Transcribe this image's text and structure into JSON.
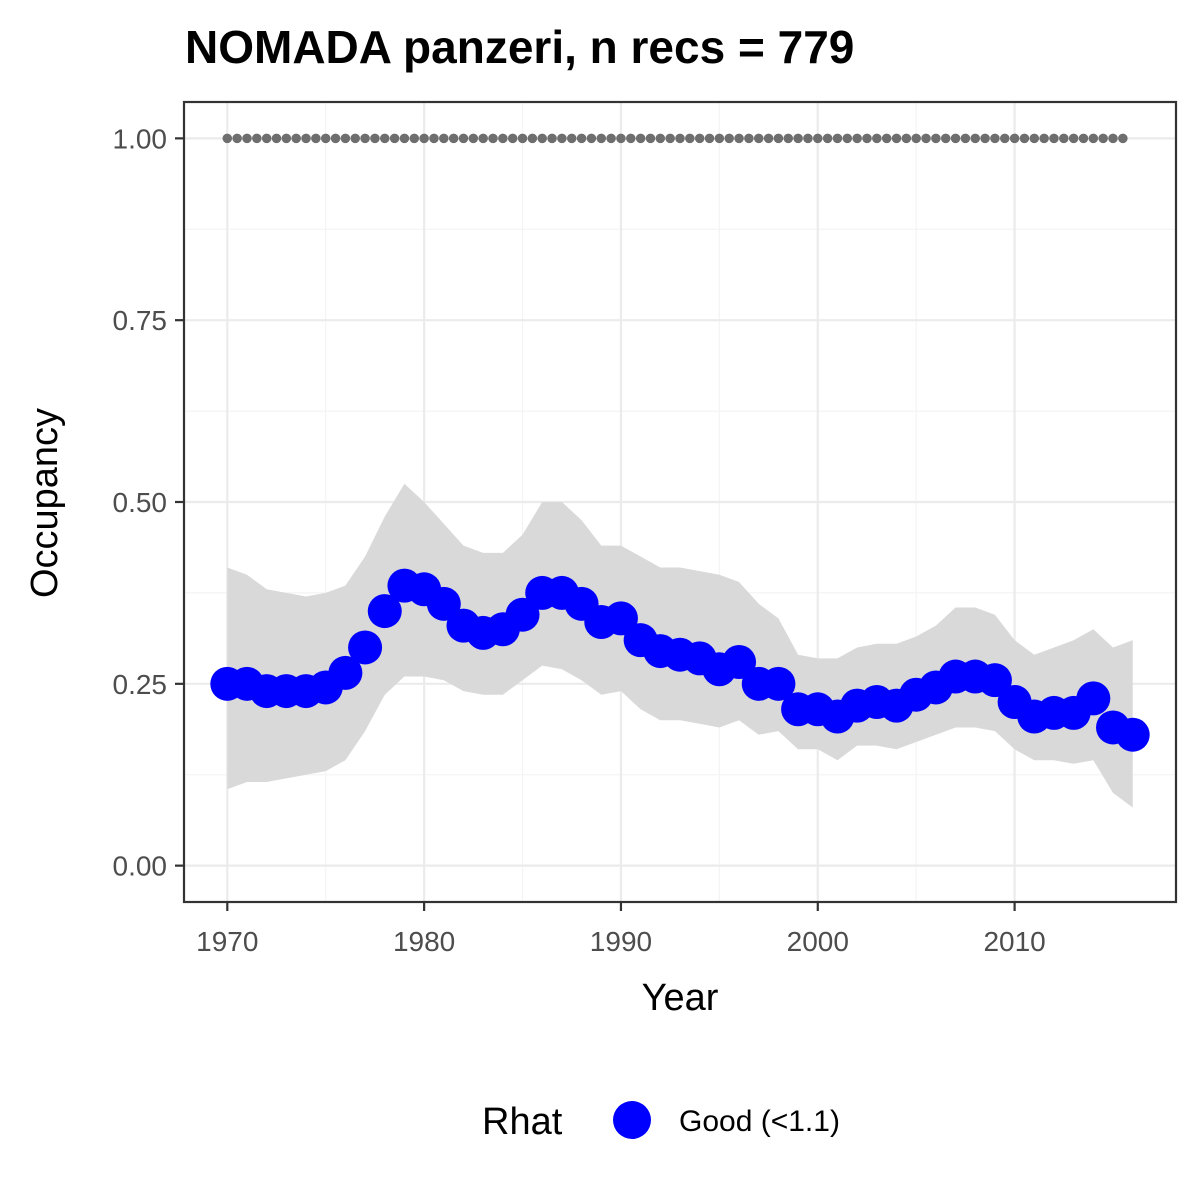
{
  "chart_data": {
    "type": "line",
    "title": "NOMADA panzeri, n recs = 779",
    "xlabel": "Year",
    "ylabel": "Occupancy",
    "xlim": [
      1967.8,
      2018.2
    ],
    "ylim": [
      -0.05,
      1.05
    ],
    "x_ticks": [
      1970,
      1980,
      1990,
      2000,
      2010
    ],
    "x_tick_labels": [
      "1970",
      "1980",
      "1990",
      "2000",
      "2010"
    ],
    "y_ticks": [
      0.0,
      0.25,
      0.5,
      0.75,
      1.0
    ],
    "y_tick_labels": [
      "0.00",
      "0.25",
      "0.50",
      "0.75",
      "1.00"
    ],
    "grid": true,
    "legend": {
      "title": "Rhat",
      "position": "bottom",
      "entries": [
        {
          "label": "Good (<1.1)",
          "color": "#0000ff"
        }
      ]
    },
    "colors": {
      "points": "#0000ff",
      "ribbon": "#d9d9d9",
      "reference_dots": "#6e6e6e",
      "panel_border": "#333333",
      "grid_major": "#ebebeb",
      "grid_minor": "#f4f4f4"
    },
    "series": [
      {
        "name": "Good (<1.1)",
        "x": [
          1970,
          1971,
          1972,
          1973,
          1974,
          1975,
          1976,
          1977,
          1978,
          1979,
          1980,
          1981,
          1982,
          1983,
          1984,
          1985,
          1986,
          1987,
          1988,
          1989,
          1990,
          1991,
          1992,
          1993,
          1994,
          1995,
          1996,
          1997,
          1998,
          1999,
          2000,
          2001,
          2002,
          2003,
          2004,
          2005,
          2006,
          2007,
          2008,
          2009,
          2010,
          2011,
          2012,
          2013,
          2014,
          2015,
          2016
        ],
        "y": [
          0.25,
          0.25,
          0.24,
          0.24,
          0.24,
          0.245,
          0.265,
          0.3,
          0.35,
          0.385,
          0.38,
          0.36,
          0.33,
          0.32,
          0.325,
          0.345,
          0.375,
          0.375,
          0.36,
          0.335,
          0.34,
          0.31,
          0.295,
          0.29,
          0.285,
          0.27,
          0.28,
          0.25,
          0.25,
          0.215,
          0.215,
          0.205,
          0.22,
          0.225,
          0.22,
          0.235,
          0.245,
          0.26,
          0.26,
          0.255,
          0.225,
          0.205,
          0.21,
          0.21,
          0.23,
          0.19,
          0.18
        ],
        "lower": [
          0.105,
          0.115,
          0.115,
          0.12,
          0.125,
          0.13,
          0.145,
          0.185,
          0.235,
          0.26,
          0.26,
          0.255,
          0.24,
          0.235,
          0.235,
          0.255,
          0.275,
          0.27,
          0.255,
          0.235,
          0.24,
          0.215,
          0.2,
          0.2,
          0.195,
          0.19,
          0.2,
          0.18,
          0.185,
          0.16,
          0.16,
          0.145,
          0.165,
          0.165,
          0.16,
          0.17,
          0.18,
          0.19,
          0.19,
          0.185,
          0.16,
          0.145,
          0.145,
          0.14,
          0.145,
          0.1,
          0.08
        ],
        "upper": [
          0.41,
          0.4,
          0.38,
          0.375,
          0.37,
          0.375,
          0.385,
          0.425,
          0.48,
          0.525,
          0.5,
          0.47,
          0.44,
          0.43,
          0.43,
          0.455,
          0.5,
          0.5,
          0.475,
          0.44,
          0.44,
          0.425,
          0.41,
          0.41,
          0.405,
          0.4,
          0.39,
          0.36,
          0.34,
          0.29,
          0.285,
          0.285,
          0.3,
          0.305,
          0.305,
          0.315,
          0.33,
          0.355,
          0.355,
          0.345,
          0.31,
          0.29,
          0.3,
          0.31,
          0.325,
          0.3,
          0.31
        ]
      }
    ],
    "reference_line": {
      "y": 1.0,
      "x": [
        1970,
        1971,
        1972,
        1973,
        1974,
        1975,
        1976,
        1977,
        1978,
        1979,
        1980,
        1981,
        1982,
        1983,
        1984,
        1985,
        1986,
        1987,
        1988,
        1989,
        1990,
        1991,
        1992,
        1993,
        1994,
        1995,
        1996,
        1997,
        1998,
        1999,
        2000,
        2001,
        2002,
        2003,
        2004,
        2005,
        2006,
        2007,
        2008,
        2009,
        2010,
        2011,
        2012,
        2013,
        2014,
        2015
      ]
    }
  }
}
